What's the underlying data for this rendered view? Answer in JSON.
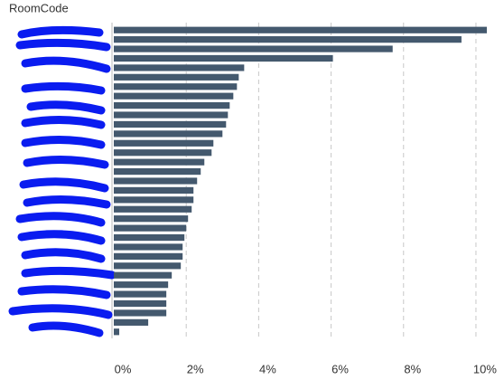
{
  "chart_data": {
    "type": "barh",
    "y_label": "RoomCode",
    "categories": [
      null,
      null,
      null,
      null,
      null,
      null,
      null,
      null,
      null,
      null,
      null,
      null,
      null,
      null,
      null,
      null,
      null,
      null,
      null,
      null,
      null,
      null,
      null,
      null,
      null,
      null,
      null,
      null,
      null,
      null,
      null,
      null,
      null
    ],
    "values": [
      10.3,
      9.6,
      7.7,
      6.05,
      3.6,
      3.45,
      3.4,
      3.3,
      3.2,
      3.15,
      3.1,
      3.0,
      2.75,
      2.7,
      2.5,
      2.4,
      2.3,
      2.2,
      2.2,
      2.15,
      2.05,
      2.0,
      1.95,
      1.9,
      1.9,
      1.85,
      1.6,
      1.5,
      1.45,
      1.45,
      1.45,
      0.95,
      0.15
    ],
    "color": "#44596e",
    "xlim": [
      0,
      10.5
    ],
    "xticks": [
      {
        "value": 0,
        "label": "0%"
      },
      {
        "value": 2,
        "label": "2%"
      },
      {
        "value": 4,
        "label": "4%"
      },
      {
        "value": 6,
        "label": "6%"
      },
      {
        "value": 8,
        "label": "8%"
      },
      {
        "value": 10,
        "label": "10%"
      }
    ],
    "grid": true
  }
}
